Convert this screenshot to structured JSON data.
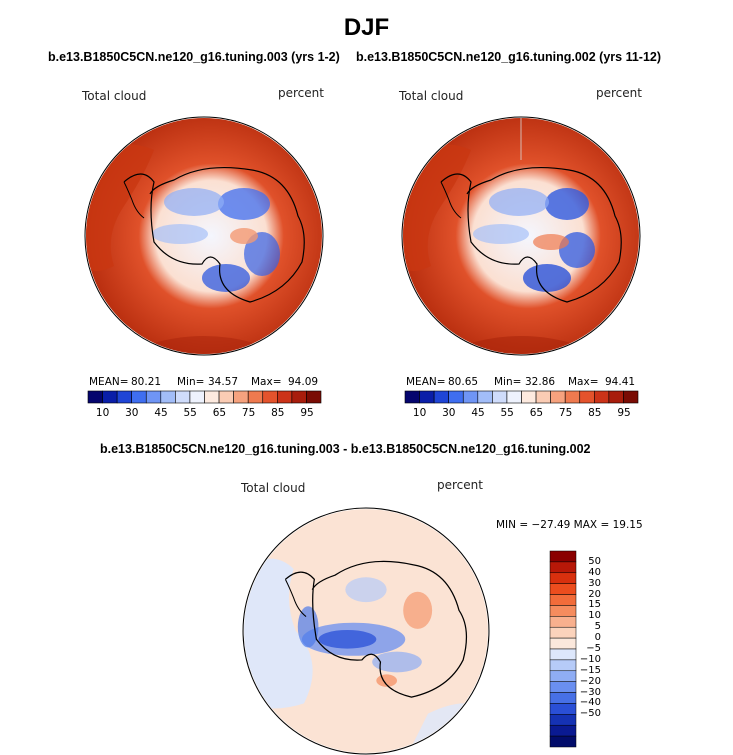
{
  "page_title": "DJF",
  "panels": [
    {
      "run": "b.e13.B1850C5CN.ne120_g16.tuning.003 (yrs 1-2)",
      "variable": "Total cloud",
      "units": "percent",
      "mean_label": "MEAN=",
      "mean": "80.21",
      "min_label": "Min=",
      "min": "34.57",
      "max_label": "Max=",
      "max": "94.09"
    },
    {
      "run": "b.e13.B1850C5CN.ne120_g16.tuning.002 (yrs 11-12)",
      "variable": "Total cloud",
      "units": "percent",
      "mean_label": "MEAN=",
      "mean": "80.65",
      "min_label": "Min=",
      "min": "32.86",
      "max_label": "Max=",
      "max": "94.41"
    }
  ],
  "colorbar": {
    "ticks": [
      "10",
      "30",
      "45",
      "55",
      "65",
      "75",
      "85",
      "95"
    ],
    "colors": [
      "#05056e",
      "#0a1ea8",
      "#1f45d6",
      "#3f6ef0",
      "#6f95f5",
      "#a2bdf8",
      "#cfdcfb",
      "#eef2fd",
      "#fdeadf",
      "#fbccb4",
      "#f6a27e",
      "#ef7a4f",
      "#e4532c",
      "#cc3318",
      "#a81d0c",
      "#7a0c04"
    ]
  },
  "diff": {
    "title": "b.e13.B1850C5CN.ne120_g16.tuning.003 - b.e13.B1850C5CN.ne120_g16.tuning.002",
    "variable": "Total cloud",
    "units": "percent",
    "minmax": "MIN = −27.49  MAX =  19.15",
    "colorbar_ticks": [
      "50",
      "40",
      "30",
      "20",
      "15",
      "10",
      "5",
      "0",
      "−5",
      "−10",
      "−15",
      "−20",
      "−30",
      "−40",
      "−50"
    ],
    "colorbar_colors": [
      "#8a0000",
      "#b81808",
      "#d8300e",
      "#ec4d1e",
      "#f26c3a",
      "#f58c5e",
      "#f8b08e",
      "#fbd3bc",
      "#fbe8dc",
      "#dde7fb",
      "#b6cbf8",
      "#8fadf4",
      "#6a8ff0",
      "#4770e6",
      "#2a4fd6",
      "#1532b4",
      "#0a1a92",
      "#020c6a"
    ]
  }
}
